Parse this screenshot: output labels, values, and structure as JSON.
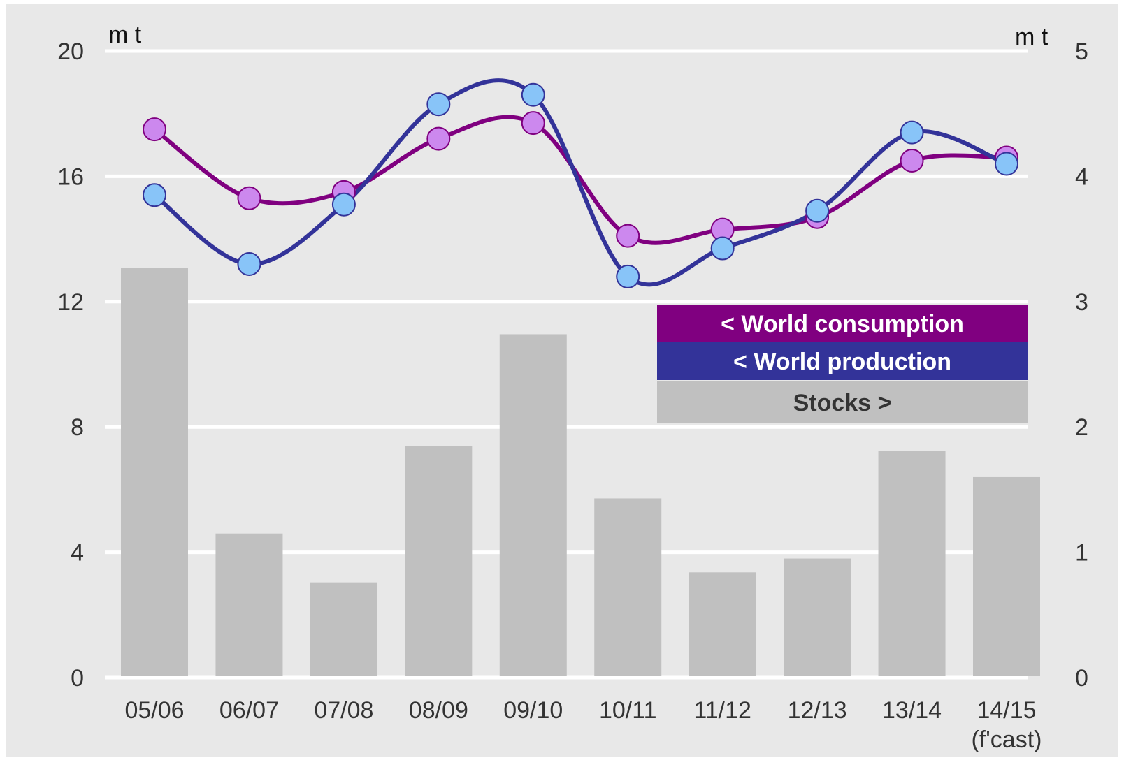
{
  "chart_data": {
    "type": "bar+line",
    "categories": [
      "05/06",
      "06/07",
      "07/08",
      "08/09",
      "09/10",
      "10/11",
      "11/12",
      "12/13",
      "13/14",
      "14/15"
    ],
    "category_sublabels": [
      "",
      "",
      "",
      "",
      "",
      "",
      "",
      "",
      "",
      "(f'cast)"
    ],
    "left_axis": {
      "unit": "m t",
      "ylim": [
        0,
        20
      ],
      "ticks": [
        0,
        4,
        8,
        12,
        16,
        20
      ]
    },
    "right_axis": {
      "unit": "m t",
      "ylim": [
        0,
        5
      ],
      "ticks": [
        0,
        1,
        2,
        3,
        4,
        5
      ]
    },
    "series": [
      {
        "name": "< World consumption",
        "kind": "line",
        "axis": "left",
        "smooth": true,
        "color": "#800080",
        "marker_color": "#cc88ee",
        "values": [
          17.5,
          15.3,
          15.5,
          17.2,
          17.7,
          14.1,
          14.3,
          14.7,
          16.5,
          16.6
        ]
      },
      {
        "name": "< World production",
        "kind": "line",
        "axis": "left",
        "smooth": true,
        "color": "#333399",
        "marker_color": "#88c4f8",
        "values": [
          15.4,
          13.2,
          15.1,
          18.3,
          18.6,
          12.8,
          13.7,
          14.9,
          17.4,
          16.4
        ]
      },
      {
        "name": "Stocks >",
        "kind": "bar",
        "axis": "right",
        "color": "#c0c0c0",
        "values": [
          3.27,
          1.15,
          0.76,
          1.85,
          2.74,
          1.43,
          0.84,
          0.95,
          1.81,
          1.6
        ]
      }
    ],
    "legend": {
      "placement": "center-right",
      "items": [
        {
          "label": "< World consumption",
          "bg": "#800080",
          "fg": "#ffffff"
        },
        {
          "label": "< World production",
          "bg": "#333399",
          "fg": "#ffffff"
        },
        {
          "label": "Stocks >",
          "bg": "#c0c0c0",
          "fg": "#333333"
        }
      ]
    },
    "grid": true,
    "colors": {
      "plot_background": "#e8e8e8",
      "gridline": "#ffffff"
    }
  }
}
